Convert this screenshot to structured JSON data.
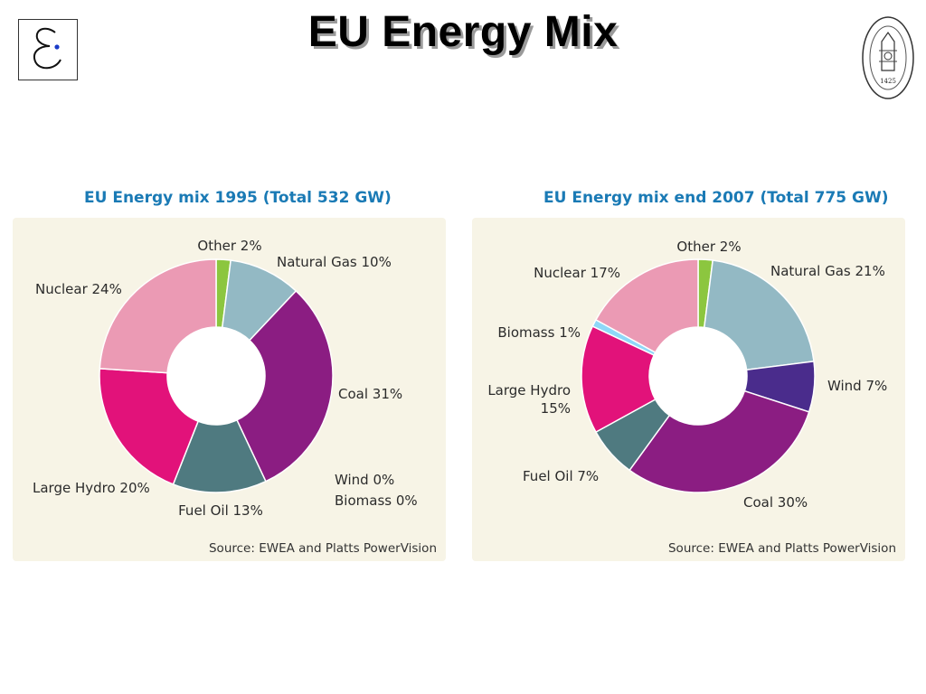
{
  "slide": {
    "title": "EU Energy Mix",
    "logo_icon": "epsilon-logo-icon",
    "seal_icon": "university-seal-icon",
    "seal_year": "1425"
  },
  "chart_data": [
    {
      "type": "pie",
      "title": "EU Energy mix 1995 (Total 532 GW)",
      "source": "Source: EWEA and Platts PowerVision",
      "series": [
        {
          "name": "Other",
          "value": 2,
          "label": "Other 2%",
          "color": "#8cc63f"
        },
        {
          "name": "Natural Gas",
          "value": 10,
          "label": "Natural Gas 10%",
          "color": "#93b9c4"
        },
        {
          "name": "Coal",
          "value": 31,
          "label": "Coal 31%",
          "color": "#8b1d82"
        },
        {
          "name": "Wind",
          "value": 0,
          "label": "Wind 0%",
          "color": "#4a2c8c"
        },
        {
          "name": "Biomass",
          "value": 0,
          "label": "Biomass 0%",
          "color": "#8ed8f8"
        },
        {
          "name": "Fuel Oil",
          "value": 13,
          "label": "Fuel Oil 13%",
          "color": "#4f7a80"
        },
        {
          "name": "Large Hydro",
          "value": 20,
          "label": "Large Hydro 20%",
          "color": "#e2127a"
        },
        {
          "name": "Nuclear",
          "value": 24,
          "label": "Nuclear 24%",
          "color": "#eb9ab4"
        }
      ]
    },
    {
      "type": "pie",
      "title": "EU Energy mix end 2007 (Total 775 GW)",
      "source": "Source: EWEA and Platts PowerVision",
      "series": [
        {
          "name": "Other",
          "value": 2,
          "label": "Other 2%",
          "color": "#8cc63f"
        },
        {
          "name": "Natural Gas",
          "value": 21,
          "label": "Natural Gas 21%",
          "color": "#93b9c4"
        },
        {
          "name": "Wind",
          "value": 7,
          "label": "Wind 7%",
          "color": "#4a2c8c"
        },
        {
          "name": "Coal",
          "value": 30,
          "label": "Coal 30%",
          "color": "#8b1d82"
        },
        {
          "name": "Fuel Oil",
          "value": 7,
          "label": "Fuel Oil 7%",
          "color": "#4f7a80"
        },
        {
          "name": "Large Hydro",
          "value": 15,
          "label": "Large Hydro 15%",
          "color": "#e2127a"
        },
        {
          "name": "Biomass",
          "value": 1,
          "label": "Biomass 1%",
          "color": "#8ed8f8"
        },
        {
          "name": "Nuclear",
          "value": 17,
          "label": "Nuclear 17%",
          "color": "#eb9ab4"
        }
      ]
    }
  ]
}
